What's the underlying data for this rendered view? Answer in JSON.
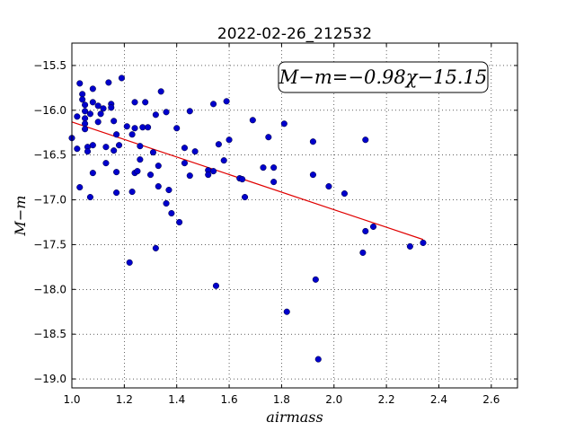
{
  "chart_data": {
    "type": "scatter",
    "title": "2022-02-26_212532",
    "xlabel": "airmass",
    "ylabel": "M−m",
    "xlim": [
      1.0,
      2.7
    ],
    "ylim": [
      -19.1,
      -15.25
    ],
    "invert_y": true,
    "grid": true,
    "grid_style": "dotted",
    "xticks": [
      1.0,
      1.2,
      1.4,
      1.6,
      1.8,
      2.0,
      2.2,
      2.4,
      2.6
    ],
    "xtick_labels": [
      "1.0",
      "1.2",
      "1.4",
      "1.6",
      "1.8",
      "2.0",
      "2.2",
      "2.4",
      "2.6"
    ],
    "yticks": [
      -15.5,
      -16.0,
      -16.5,
      -17.0,
      -17.5,
      -18.0,
      -18.5,
      -19.0
    ],
    "ytick_labels": [
      "−15.5",
      "−16.0",
      "−16.5",
      "−17.0",
      "−17.5",
      "−18.0",
      "−18.5",
      "−19.0"
    ],
    "annotation": "M−m=−0.98χ−15.15",
    "annotation_placement": "top-right",
    "point_color": "#0000cc",
    "line_color": "#e00000",
    "fit": {
      "slope": -0.98,
      "intercept": -15.15,
      "x_range": [
        1.0,
        2.34
      ]
    },
    "points": [
      {
        "x": 1.0,
        "y": -16.31
      },
      {
        "x": 1.02,
        "y": -16.07
      },
      {
        "x": 1.02,
        "y": -16.43
      },
      {
        "x": 1.03,
        "y": -15.7
      },
      {
        "x": 1.03,
        "y": -16.86
      },
      {
        "x": 1.04,
        "y": -15.82
      },
      {
        "x": 1.04,
        "y": -15.88
      },
      {
        "x": 1.05,
        "y": -15.94
      },
      {
        "x": 1.05,
        "y": -16.01
      },
      {
        "x": 1.05,
        "y": -16.09
      },
      {
        "x": 1.05,
        "y": -16.15
      },
      {
        "x": 1.05,
        "y": -16.21
      },
      {
        "x": 1.06,
        "y": -16.41
      },
      {
        "x": 1.06,
        "y": -16.46
      },
      {
        "x": 1.07,
        "y": -16.04
      },
      {
        "x": 1.07,
        "y": -16.97
      },
      {
        "x": 1.08,
        "y": -15.76
      },
      {
        "x": 1.08,
        "y": -15.91
      },
      {
        "x": 1.08,
        "y": -16.39
      },
      {
        "x": 1.08,
        "y": -16.7
      },
      {
        "x": 1.1,
        "y": -16.13
      },
      {
        "x": 1.1,
        "y": -15.95
      },
      {
        "x": 1.11,
        "y": -16.04
      },
      {
        "x": 1.12,
        "y": -15.98
      },
      {
        "x": 1.13,
        "y": -16.41
      },
      {
        "x": 1.13,
        "y": -16.59
      },
      {
        "x": 1.14,
        "y": -15.69
      },
      {
        "x": 1.15,
        "y": -15.93
      },
      {
        "x": 1.15,
        "y": -15.97
      },
      {
        "x": 1.16,
        "y": -16.12
      },
      {
        "x": 1.16,
        "y": -16.45
      },
      {
        "x": 1.17,
        "y": -16.27
      },
      {
        "x": 1.17,
        "y": -16.69
      },
      {
        "x": 1.17,
        "y": -16.92
      },
      {
        "x": 1.18,
        "y": -16.39
      },
      {
        "x": 1.19,
        "y": -15.64
      },
      {
        "x": 1.21,
        "y": -16.18
      },
      {
        "x": 1.22,
        "y": -17.7
      },
      {
        "x": 1.23,
        "y": -16.27
      },
      {
        "x": 1.23,
        "y": -16.91
      },
      {
        "x": 1.24,
        "y": -15.91
      },
      {
        "x": 1.24,
        "y": -16.2
      },
      {
        "x": 1.24,
        "y": -16.7
      },
      {
        "x": 1.25,
        "y": -16.68
      },
      {
        "x": 1.26,
        "y": -16.4
      },
      {
        "x": 1.26,
        "y": -16.55
      },
      {
        "x": 1.27,
        "y": -16.19
      },
      {
        "x": 1.28,
        "y": -15.91
      },
      {
        "x": 1.29,
        "y": -16.19
      },
      {
        "x": 1.3,
        "y": -16.72
      },
      {
        "x": 1.31,
        "y": -16.47
      },
      {
        "x": 1.32,
        "y": -16.05
      },
      {
        "x": 1.32,
        "y": -17.54
      },
      {
        "x": 1.33,
        "y": -16.62
      },
      {
        "x": 1.33,
        "y": -16.85
      },
      {
        "x": 1.34,
        "y": -15.79
      },
      {
        "x": 1.36,
        "y": -16.02
      },
      {
        "x": 1.36,
        "y": -17.04
      },
      {
        "x": 1.37,
        "y": -16.89
      },
      {
        "x": 1.38,
        "y": -17.15
      },
      {
        "x": 1.4,
        "y": -16.2
      },
      {
        "x": 1.41,
        "y": -17.25
      },
      {
        "x": 1.43,
        "y": -16.42
      },
      {
        "x": 1.43,
        "y": -16.59
      },
      {
        "x": 1.45,
        "y": -16.01
      },
      {
        "x": 1.45,
        "y": -16.73
      },
      {
        "x": 1.47,
        "y": -16.46
      },
      {
        "x": 1.52,
        "y": -16.67
      },
      {
        "x": 1.52,
        "y": -16.72
      },
      {
        "x": 1.54,
        "y": -15.93
      },
      {
        "x": 1.54,
        "y": -16.68
      },
      {
        "x": 1.55,
        "y": -17.96
      },
      {
        "x": 1.56,
        "y": -16.38
      },
      {
        "x": 1.58,
        "y": -16.56
      },
      {
        "x": 1.59,
        "y": -15.9
      },
      {
        "x": 1.6,
        "y": -16.33
      },
      {
        "x": 1.64,
        "y": -16.76
      },
      {
        "x": 1.65,
        "y": -16.77
      },
      {
        "x": 1.66,
        "y": -16.97
      },
      {
        "x": 1.69,
        "y": -16.11
      },
      {
        "x": 1.73,
        "y": -16.64
      },
      {
        "x": 1.75,
        "y": -16.3
      },
      {
        "x": 1.77,
        "y": -16.8
      },
      {
        "x": 1.77,
        "y": -16.64
      },
      {
        "x": 1.81,
        "y": -16.15
      },
      {
        "x": 1.82,
        "y": -18.25
      },
      {
        "x": 1.92,
        "y": -16.35
      },
      {
        "x": 1.92,
        "y": -16.72
      },
      {
        "x": 1.93,
        "y": -17.89
      },
      {
        "x": 1.94,
        "y": -18.78
      },
      {
        "x": 1.98,
        "y": -16.85
      },
      {
        "x": 2.04,
        "y": -16.93
      },
      {
        "x": 2.11,
        "y": -17.59
      },
      {
        "x": 2.12,
        "y": -17.35
      },
      {
        "x": 2.12,
        "y": -16.33
      },
      {
        "x": 2.15,
        "y": -17.3
      },
      {
        "x": 2.29,
        "y": -17.52
      },
      {
        "x": 2.34,
        "y": -17.48
      }
    ]
  }
}
